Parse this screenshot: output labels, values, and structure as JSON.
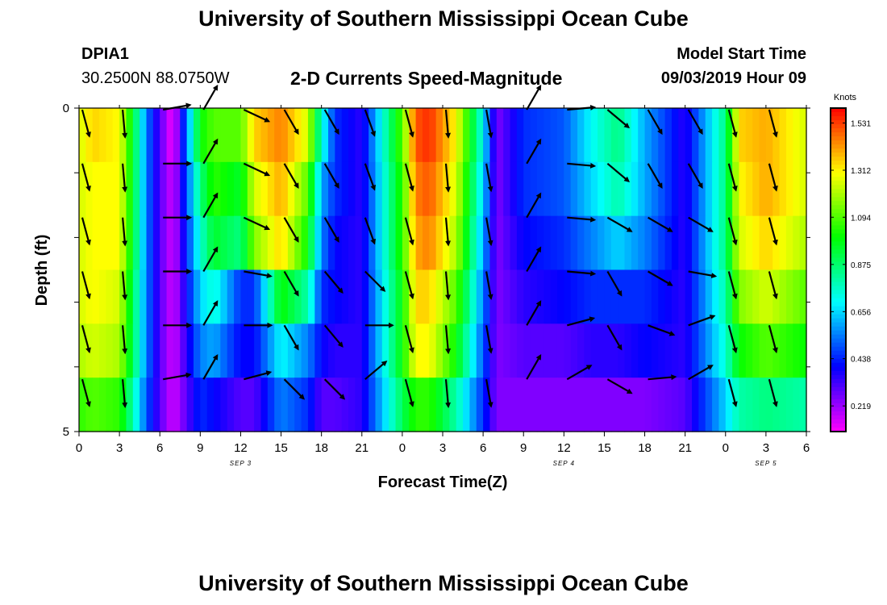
{
  "header": {
    "title": "University of Southern Mississippi Ocean Cube",
    "station_id": "DPIA1",
    "station_coords": "30.2500N 88.0750W",
    "plot_title": "2-D Currents Speed-Magnitude",
    "model_start_label": "Model Start Time",
    "model_start_value": "09/03/2019 Hour 09"
  },
  "footer": {
    "title": "University of Southern Mississippi Ocean Cube"
  },
  "chart_data": {
    "type": "heatmap",
    "title": "2-D Currents Speed-Magnitude",
    "xlabel": "Forecast Time(Z)",
    "ylabel": "Depth (ft)",
    "colorbar_label": "Knots",
    "colorbar_ticks": [
      "0.219",
      "0.438",
      "0.656",
      "0.875",
      "1.094",
      "1.312",
      "1.531"
    ],
    "colorbar_range": [
      0.1,
      1.6
    ],
    "x_tick_labels": [
      "0",
      "3",
      "6",
      "9",
      "12",
      "15",
      "18",
      "21",
      "0",
      "3",
      "6",
      "9",
      "12",
      "15",
      "18",
      "21",
      "0",
      "3",
      "6"
    ],
    "x_range_hours": [
      0,
      54
    ],
    "day_labels": [
      {
        "text": "SEP 3",
        "hour": 12
      },
      {
        "text": "SEP 4",
        "hour": 36
      },
      {
        "text": "SEP 5",
        "hour": 51
      }
    ],
    "y_tick_labels": [
      "0",
      "5"
    ],
    "y_range": [
      0,
      5
    ],
    "depth_rows": [
      0.5,
      1.5,
      2.5,
      3.5,
      4.5
    ],
    "speed_keyframes_hours": [
      0,
      1,
      3,
      4,
      5,
      6,
      7,
      9,
      10,
      12,
      13,
      15,
      17,
      18,
      19,
      21,
      24,
      25,
      26,
      28,
      30,
      31,
      33,
      36,
      38,
      40,
      42,
      45,
      48,
      49,
      51,
      54
    ],
    "speed_keyframes_knots": [
      [
        1.25,
        1.35,
        1.3,
        0.95,
        0.55,
        0.3,
        0.1,
        1.0,
        1.1,
        1.1,
        1.35,
        1.45,
        1.25,
        0.75,
        0.45,
        0.35,
        1.1,
        1.5,
        1.55,
        1.3,
        0.7,
        0.25,
        0.45,
        0.5,
        0.7,
        0.85,
        0.6,
        0.35,
        0.85,
        1.35,
        1.4,
        1.25
      ],
      [
        1.25,
        1.3,
        1.3,
        0.95,
        0.55,
        0.3,
        0.15,
        0.85,
        1.05,
        0.95,
        1.25,
        1.4,
        1.1,
        0.6,
        0.45,
        0.35,
        1.05,
        1.45,
        1.5,
        1.25,
        0.65,
        0.25,
        0.45,
        0.5,
        0.65,
        0.8,
        0.6,
        0.35,
        0.85,
        1.3,
        1.4,
        1.25
      ],
      [
        1.25,
        1.3,
        1.3,
        0.95,
        0.55,
        0.3,
        0.15,
        0.75,
        0.95,
        0.85,
        1.15,
        1.35,
        1.0,
        0.55,
        0.4,
        0.35,
        1.05,
        1.4,
        1.45,
        1.2,
        0.6,
        0.25,
        0.4,
        0.45,
        0.55,
        0.65,
        0.55,
        0.35,
        0.85,
        1.25,
        1.35,
        1.2
      ],
      [
        1.25,
        1.3,
        1.25,
        0.9,
        0.55,
        0.3,
        0.15,
        0.65,
        0.75,
        0.45,
        0.45,
        1.0,
        0.8,
        0.45,
        0.4,
        0.35,
        1.0,
        1.35,
        1.35,
        1.1,
        0.55,
        0.25,
        0.35,
        0.4,
        0.45,
        0.45,
        0.45,
        0.35,
        0.8,
        1.15,
        1.25,
        1.1
      ],
      [
        1.2,
        1.25,
        1.2,
        0.9,
        0.55,
        0.3,
        0.15,
        0.55,
        0.6,
        0.4,
        0.4,
        0.7,
        0.55,
        0.4,
        0.35,
        0.35,
        1.0,
        1.3,
        1.3,
        1.0,
        0.5,
        0.25,
        0.3,
        0.3,
        0.35,
        0.35,
        0.4,
        0.35,
        0.75,
        1.0,
        1.1,
        1.0
      ],
      [
        1.05,
        1.1,
        1.05,
        0.8,
        0.5,
        0.3,
        0.15,
        0.45,
        0.4,
        0.3,
        0.3,
        0.55,
        0.45,
        0.3,
        0.3,
        0.35,
        0.9,
        1.05,
        1.05,
        0.8,
        0.45,
        0.25,
        0.25,
        0.25,
        0.25,
        0.25,
        0.25,
        0.3,
        0.65,
        0.8,
        0.85,
        0.8
      ]
    ],
    "vector_columns_hours": [
      0,
      3,
      6,
      9,
      12,
      15,
      18,
      21,
      24,
      27,
      30,
      33,
      36,
      39,
      42,
      45,
      48,
      51
    ],
    "vector_directions_deg": [
      [
        165,
        175,
        80,
        30,
        115,
        150,
        150,
        160,
        165,
        175,
        170,
        30,
        85,
        130,
        150,
        150,
        165,
        165
      ],
      [
        165,
        175,
        90,
        30,
        115,
        150,
        150,
        160,
        165,
        175,
        170,
        30,
        95,
        130,
        150,
        150,
        165,
        165
      ],
      [
        165,
        175,
        90,
        30,
        115,
        150,
        150,
        160,
        165,
        175,
        170,
        30,
        95,
        120,
        120,
        120,
        165,
        165
      ],
      [
        165,
        175,
        90,
        30,
        100,
        150,
        140,
        135,
        165,
        175,
        170,
        30,
        95,
        150,
        120,
        100,
        165,
        165
      ],
      [
        165,
        175,
        90,
        30,
        90,
        150,
        140,
        90,
        165,
        175,
        170,
        30,
        75,
        150,
        110,
        70,
        165,
        165
      ],
      [
        165,
        175,
        80,
        30,
        75,
        135,
        135,
        50,
        165,
        175,
        170,
        30,
        60,
        120,
        85,
        60,
        165,
        165
      ]
    ]
  }
}
